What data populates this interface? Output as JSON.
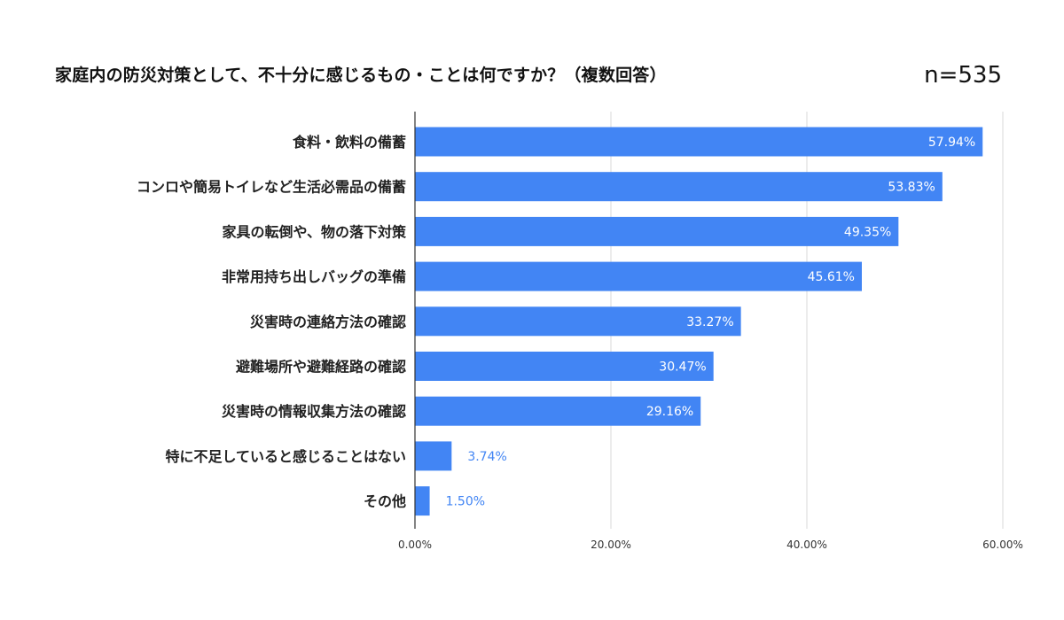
{
  "sample_size": "n=535",
  "chart_data": {
    "type": "bar",
    "orientation": "horizontal",
    "title": "家庭内の防災対策として、不十分に感じるもの・ことは何ですか？（複数回答）",
    "categories": [
      "食料・飲料の備蓄",
      "コンロや簡易トイレなど生活必需品の備蓄",
      "家具の転倒や、物の落下対策",
      "非常用持ち出しバッグの準備",
      "災害時の連絡方法の確認",
      "避難場所や避難経路の確認",
      "災害時の情報収集方法の確認",
      "特に不足していると感じることはない",
      "その他"
    ],
    "values": [
      57.94,
      53.83,
      49.35,
      45.61,
      33.27,
      30.47,
      29.16,
      3.74,
      1.5
    ],
    "value_labels": [
      "57.94%",
      "53.83%",
      "49.35%",
      "45.61%",
      "33.27%",
      "30.47%",
      "29.16%",
      "3.74%",
      "1.50%"
    ],
    "xlim": [
      0,
      60
    ],
    "x_ticks": [
      0,
      20,
      40,
      60
    ],
    "x_tick_labels": [
      "0.00%",
      "20.00%",
      "40.00%",
      "60.00%"
    ],
    "grid": true,
    "bar_color": "#4285F4",
    "inside_label_color": "#ffffff",
    "outside_label_color": "#4285F4",
    "gridline_color": "#d9d9d9"
  }
}
